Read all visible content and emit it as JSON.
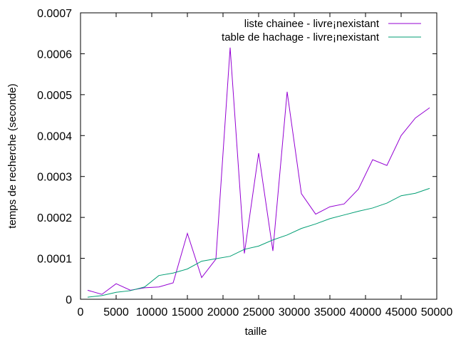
{
  "chart_data": {
    "type": "line",
    "title": "",
    "xlabel": "taille",
    "ylabel": "temps de recherche (seconde)",
    "xlim": [
      0,
      50000
    ],
    "ylim": [
      0,
      0.0007
    ],
    "xticks": [
      0,
      5000,
      10000,
      15000,
      20000,
      25000,
      30000,
      35000,
      40000,
      45000,
      50000
    ],
    "xtick_labels": [
      "0",
      "5000",
      "10000",
      "15000",
      "20000",
      "25000",
      "30000",
      "35000",
      "40000",
      "45000",
      "50000"
    ],
    "yticks": [
      0,
      0.0001,
      0.0002,
      0.0003,
      0.0004,
      0.0005,
      0.0006,
      0.0007
    ],
    "ytick_labels": [
      "0",
      "0.0001",
      "0.0002",
      "0.0003",
      "0.0004",
      "0.0005",
      "0.0006",
      "0.0007"
    ],
    "grid": false,
    "legend_position": "top-right",
    "x": [
      1000,
      3000,
      5000,
      7000,
      9000,
      11000,
      13000,
      15000,
      17000,
      19000,
      21000,
      23000,
      25000,
      27000,
      29000,
      31000,
      33000,
      35000,
      37000,
      39000,
      41000,
      43000,
      45000,
      47000,
      49000
    ],
    "series": [
      {
        "name": "liste chainee - livre¡nexistant",
        "color": "#9400d3",
        "values": [
          2.2e-05,
          1.2e-05,
          3.8e-05,
          2.2e-05,
          2.8e-05,
          3e-05,
          4e-05,
          0.000161,
          5.3e-05,
          9.8e-05,
          0.000615,
          0.000112,
          0.000357,
          0.000118,
          0.000507,
          0.000258,
          0.000208,
          0.000226,
          0.000233,
          0.000269,
          0.000341,
          0.000327,
          0.0004,
          0.000443,
          0.000468
        ]
      },
      {
        "name": "table de hachage - livre¡nexistant",
        "color": "#009e73",
        "values": [
          5e-06,
          9e-06,
          1.7e-05,
          2.1e-05,
          3e-05,
          5.8e-05,
          6.4e-05,
          7.4e-05,
          9.3e-05,
          9.9e-05,
          0.000105,
          0.000122,
          0.00013,
          0.000145,
          0.000157,
          0.000173,
          0.000184,
          0.000197,
          0.000206,
          0.000215,
          0.000223,
          0.000235,
          0.000253,
          0.000259,
          0.000271
        ]
      }
    ]
  }
}
